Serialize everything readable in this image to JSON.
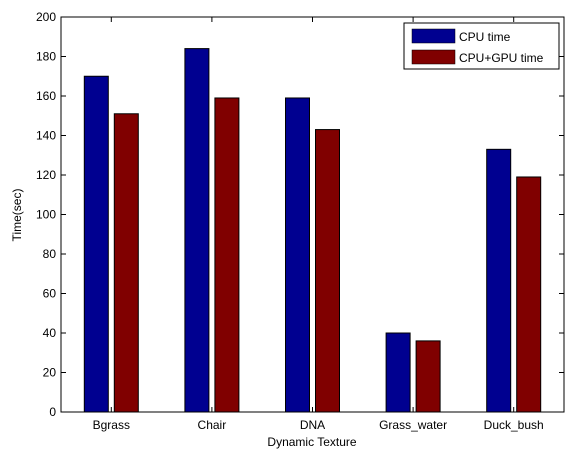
{
  "chart_data": {
    "type": "bar",
    "title": "",
    "xlabel": "Dynamic Texture",
    "ylabel": "Time(sec)",
    "categories": [
      "Bgrass",
      "Chair",
      "DNA",
      "Grass_water",
      "Duck_bush"
    ],
    "series": [
      {
        "name": "CPU time",
        "color": "#000090",
        "values": [
          170,
          184,
          159,
          40,
          133
        ]
      },
      {
        "name": "CPU+GPU time",
        "color": "#800000",
        "values": [
          151,
          159,
          143,
          36,
          119
        ]
      }
    ],
    "ylim": [
      0,
      200
    ],
    "yticks": [
      0,
      20,
      40,
      60,
      80,
      100,
      120,
      140,
      160,
      180,
      200
    ],
    "ytick_labels": [
      "0",
      "20",
      "40",
      "60",
      "80",
      "100",
      "120",
      "140",
      "160",
      "180",
      "200"
    ],
    "grid": false,
    "legend": {
      "position": "top-right"
    }
  }
}
